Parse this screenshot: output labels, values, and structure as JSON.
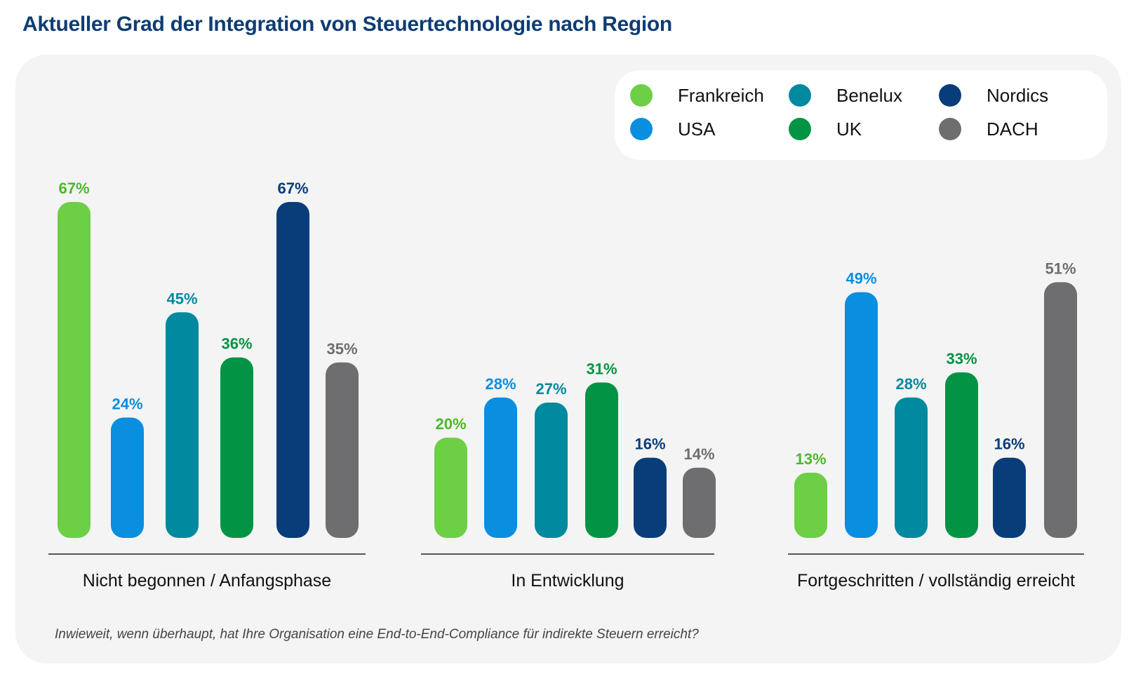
{
  "title": "Aktueller Grad der Integration von Steuertechnologie nach Region",
  "footnote": "Inwieweit, wenn überhaupt, hat Ihre Organisation eine End-to-End-Compliance für indirekte Steuern erreicht?",
  "legend": [
    {
      "name": "Frankreich",
      "color": "#6ccf46"
    },
    {
      "name": "Benelux",
      "color": "#018a9f"
    },
    {
      "name": "Nordics",
      "color": "#083d7a"
    },
    {
      "name": "USA",
      "color": "#0a8ee0"
    },
    {
      "name": "UK",
      "color": "#029444"
    },
    {
      "name": "DACH",
      "color": "#6e6e71"
    }
  ],
  "chart_data": {
    "type": "bar",
    "categories": [
      "Nicht begonnen / Anfangsphase",
      "In Entwicklung",
      "Fortgeschritten / vollständig erreicht"
    ],
    "series": [
      {
        "name": "Frankreich",
        "color": "#6ccf46",
        "label_color": "#4cb82a",
        "values": [
          67,
          20,
          13
        ]
      },
      {
        "name": "USA",
        "color": "#0a8ee0",
        "label_color": "#0a8ee0",
        "values": [
          24,
          28,
          49
        ]
      },
      {
        "name": "Benelux",
        "color": "#018a9f",
        "label_color": "#018a9f",
        "values": [
          45,
          27,
          28
        ]
      },
      {
        "name": "UK",
        "color": "#029444",
        "label_color": "#029444",
        "values": [
          36,
          31,
          33
        ]
      },
      {
        "name": "Nordics",
        "color": "#083d7a",
        "label_color": "#083d7a",
        "values": [
          67,
          16,
          16
        ]
      },
      {
        "name": "DACH",
        "color": "#6e6e71",
        "label_color": "#6e6e71",
        "values": [
          35,
          14,
          51
        ]
      }
    ],
    "value_suffix": "%",
    "legend_position": "top-right",
    "grid": false
  }
}
